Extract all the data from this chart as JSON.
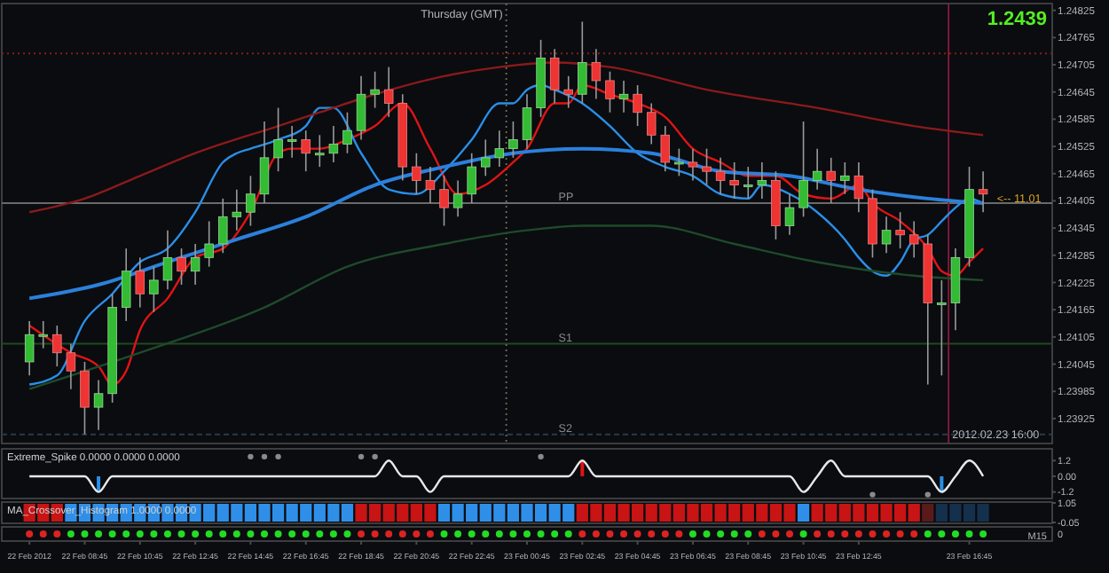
{
  "chart_data": [
    {
      "type": "candlestick",
      "tick_labels": "y",
      "xlim": [
        "2012-02-22T05:45",
        "2012-02-23T19:45"
      ],
      "ylim": [
        1.2387,
        1.2484
      ],
      "yticks": [
        1.24825,
        1.24765,
        1.24705,
        1.24645,
        1.24585,
        1.24525,
        1.24465,
        1.24405,
        1.24345,
        1.24285,
        1.24225,
        1.24165,
        1.24105,
        1.24045,
        1.23985,
        1.23925
      ],
      "x": [
        "2012-02-22T06:45",
        "2012-02-22T07:15",
        "2012-02-22T07:45",
        "2012-02-22T08:15",
        "2012-02-22T08:45",
        "2012-02-22T09:15",
        "2012-02-22T09:45",
        "2012-02-22T10:15",
        "2012-02-22T10:45",
        "2012-02-22T11:15",
        "2012-02-22T11:45",
        "2012-02-22T12:15",
        "2012-02-22T12:45",
        "2012-02-22T13:15",
        "2012-02-22T13:45",
        "2012-02-22T14:15",
        "2012-02-22T14:45",
        "2012-02-22T15:15",
        "2012-02-22T15:45",
        "2012-02-22T16:15",
        "2012-02-22T16:45",
        "2012-02-22T17:15",
        "2012-02-22T17:45",
        "2012-02-22T18:15",
        "2012-02-22T18:45",
        "2012-02-22T19:15",
        "2012-02-22T19:45",
        "2012-02-22T20:15",
        "2012-02-22T20:45",
        "2012-02-22T21:15",
        "2012-02-22T21:45",
        "2012-02-22T22:15",
        "2012-02-22T22:45",
        "2012-02-22T23:15",
        "2012-02-22T23:45",
        "2012-02-23T00:15",
        "2012-02-23T00:45",
        "2012-02-23T01:15",
        "2012-02-23T01:45",
        "2012-02-23T02:15",
        "2012-02-23T02:45",
        "2012-02-23T03:15",
        "2012-02-23T03:45",
        "2012-02-23T04:15",
        "2012-02-23T04:45",
        "2012-02-23T05:15",
        "2012-02-23T05:45",
        "2012-02-23T06:15",
        "2012-02-23T06:45",
        "2012-02-23T07:15",
        "2012-02-23T07:45",
        "2012-02-23T08:15",
        "2012-02-23T08:45",
        "2012-02-23T09:15",
        "2012-02-23T09:45",
        "2012-02-23T10:15",
        "2012-02-23T10:45",
        "2012-02-23T11:15",
        "2012-02-23T11:45",
        "2012-02-23T12:15",
        "2012-02-23T12:45",
        "2012-02-23T13:15",
        "2012-02-23T13:45",
        "2012-02-23T14:15",
        "2012-02-23T14:45",
        "2012-02-23T15:15",
        "2012-02-23T15:45",
        "2012-02-23T16:15",
        "2012-02-23T16:45",
        "2012-02-23T17:15"
      ],
      "ohlc": [
        [
          1.2405,
          1.2414,
          1.2402,
          1.2411
        ],
        [
          1.2411,
          1.2414,
          1.2408,
          1.2411
        ],
        [
          1.2411,
          1.2413,
          1.2404,
          1.2407
        ],
        [
          1.2407,
          1.2409,
          1.2399,
          1.2403
        ],
        [
          1.2403,
          1.2405,
          1.2389,
          1.2395
        ],
        [
          1.2395,
          1.2401,
          1.239,
          1.2398
        ],
        [
          1.2398,
          1.242,
          1.2396,
          1.2417
        ],
        [
          1.2417,
          1.243,
          1.2414,
          1.2425
        ],
        [
          1.2425,
          1.2428,
          1.2417,
          1.242
        ],
        [
          1.242,
          1.2426,
          1.2416,
          1.2423
        ],
        [
          1.2423,
          1.2434,
          1.2421,
          1.2428
        ],
        [
          1.2428,
          1.243,
          1.2422,
          1.2425
        ],
        [
          1.2425,
          1.2431,
          1.2422,
          1.2428
        ],
        [
          1.2428,
          1.2436,
          1.2426,
          1.2431
        ],
        [
          1.2431,
          1.2441,
          1.2429,
          1.2437
        ],
        [
          1.2437,
          1.2443,
          1.2434,
          1.2438
        ],
        [
          1.2438,
          1.2446,
          1.2435,
          1.2442
        ],
        [
          1.2442,
          1.2458,
          1.244,
          1.245
        ],
        [
          1.245,
          1.2461,
          1.2447,
          1.2454
        ],
        [
          1.2454,
          1.2457,
          1.245,
          1.2454
        ],
        [
          1.2454,
          1.2456,
          1.2447,
          1.2451
        ],
        [
          1.2451,
          1.2455,
          1.2448,
          1.2451
        ],
        [
          1.2451,
          1.2457,
          1.2449,
          1.2453
        ],
        [
          1.2453,
          1.246,
          1.2451,
          1.2456
        ],
        [
          1.2456,
          1.2468,
          1.2454,
          1.2464
        ],
        [
          1.2464,
          1.2469,
          1.2461,
          1.2465
        ],
        [
          1.2465,
          1.247,
          1.2459,
          1.2462
        ],
        [
          1.2462,
          1.2464,
          1.2445,
          1.2448
        ],
        [
          1.2448,
          1.2451,
          1.2442,
          1.2445
        ],
        [
          1.2445,
          1.2448,
          1.244,
          1.2443
        ],
        [
          1.2443,
          1.2446,
          1.2435,
          1.2439
        ],
        [
          1.2439,
          1.2445,
          1.2437,
          1.2442
        ],
        [
          1.2442,
          1.2451,
          1.244,
          1.2448
        ],
        [
          1.2448,
          1.2454,
          1.2446,
          1.245
        ],
        [
          1.245,
          1.2456,
          1.2448,
          1.2452
        ],
        [
          1.2452,
          1.2458,
          1.245,
          1.2454
        ],
        [
          1.2454,
          1.2464,
          1.2452,
          1.2461
        ],
        [
          1.2461,
          1.2476,
          1.2459,
          1.2472
        ],
        [
          1.2472,
          1.2474,
          1.2462,
          1.2465
        ],
        [
          1.2465,
          1.2468,
          1.2461,
          1.2464
        ],
        [
          1.2464,
          1.248,
          1.2462,
          1.2471
        ],
        [
          1.2471,
          1.2474,
          1.2463,
          1.2467
        ],
        [
          1.2467,
          1.2469,
          1.246,
          1.2463
        ],
        [
          1.2463,
          1.2467,
          1.246,
          1.2464
        ],
        [
          1.2464,
          1.2466,
          1.2457,
          1.246
        ],
        [
          1.246,
          1.2462,
          1.2453,
          1.2455
        ],
        [
          1.2455,
          1.2457,
          1.2447,
          1.2449
        ],
        [
          1.2449,
          1.2452,
          1.2446,
          1.2449
        ],
        [
          1.2449,
          1.2452,
          1.2445,
          1.2448
        ],
        [
          1.2448,
          1.2452,
          1.2444,
          1.2447
        ],
        [
          1.2447,
          1.245,
          1.2442,
          1.2445
        ],
        [
          1.2445,
          1.2449,
          1.2441,
          1.2444
        ],
        [
          1.2444,
          1.2448,
          1.2441,
          1.2444
        ],
        [
          1.2444,
          1.2449,
          1.2441,
          1.2445
        ],
        [
          1.2445,
          1.2447,
          1.2432,
          1.2435
        ],
        [
          1.2435,
          1.2442,
          1.2433,
          1.2439
        ],
        [
          1.2439,
          1.2458,
          1.2437,
          1.2445
        ],
        [
          1.2445,
          1.2452,
          1.2443,
          1.2447
        ],
        [
          1.2447,
          1.245,
          1.244,
          1.2445
        ],
        [
          1.2445,
          1.2449,
          1.2442,
          1.2446
        ],
        [
          1.2446,
          1.2449,
          1.2438,
          1.2441
        ],
        [
          1.2441,
          1.2443,
          1.2428,
          1.2431
        ],
        [
          1.2431,
          1.2437,
          1.2429,
          1.2434
        ],
        [
          1.2434,
          1.2438,
          1.243,
          1.2433
        ],
        [
          1.2433,
          1.2436,
          1.2428,
          1.2431
        ],
        [
          1.2431,
          1.2433,
          1.24,
          1.2418
        ],
        [
          1.2418,
          1.2423,
          1.2402,
          1.2418
        ],
        [
          1.2418,
          1.243,
          1.2412,
          1.2428
        ],
        [
          1.2428,
          1.2448,
          1.2426,
          1.2443
        ],
        [
          1.2443,
          1.2447,
          1.2438,
          1.2442
        ]
      ],
      "series": [
        {
          "type": "line",
          "color": "#e01414",
          "x": [
            "2012-02-22T06:45",
            "2012-02-22T08:15",
            "2012-02-22T09:15",
            "2012-02-22T09:45",
            "2012-02-22T10:15",
            "2012-02-22T10:45",
            "2012-02-22T11:45",
            "2012-02-22T12:45",
            "2012-02-22T13:45",
            "2012-02-22T14:45",
            "2012-02-22T15:45",
            "2012-02-22T16:15",
            "2012-02-22T17:15",
            "2012-02-22T18:15",
            "2012-02-22T19:15",
            "2012-02-22T20:15",
            "2012-02-22T21:15",
            "2012-02-22T22:15",
            "2012-02-22T23:15",
            "2012-02-23T00:15",
            "2012-02-23T00:45",
            "2012-02-23T01:45",
            "2012-02-23T02:15",
            "2012-02-23T02:45",
            "2012-02-23T03:45",
            "2012-02-23T04:45",
            "2012-02-23T05:45",
            "2012-02-23T06:45",
            "2012-02-23T07:45",
            "2012-02-23T08:45",
            "2012-02-23T09:45",
            "2012-02-23T10:45",
            "2012-02-23T11:45",
            "2012-02-23T12:45",
            "2012-02-23T13:15",
            "2012-02-23T14:15",
            "2012-02-23T15:15",
            "2012-02-23T15:45",
            "2012-02-23T16:15",
            "2012-02-23T16:45",
            "2012-02-23T17:15"
          ],
          "values": [
            1.2413,
            1.2407,
            1.2404,
            1.24,
            1.2403,
            1.2412,
            1.2419,
            1.2428,
            1.243,
            1.2438,
            1.2451,
            1.2452,
            1.2452,
            1.2454,
            1.2457,
            1.2462,
            1.2452,
            1.2442,
            1.2444,
            1.2449,
            1.2452,
            1.2462,
            1.2462,
            1.2466,
            1.2464,
            1.2462,
            1.2459,
            1.2452,
            1.2449,
            1.2446,
            1.2446,
            1.2442,
            1.2441,
            1.2444,
            1.244,
            1.2436,
            1.243,
            1.2425,
            1.2424,
            1.2427,
            1.243
          ]
        },
        {
          "type": "line",
          "color": "#2a8fe8",
          "x": [
            "2012-02-22T06:45",
            "2012-02-22T07:45",
            "2012-02-22T08:45",
            "2012-02-22T09:45",
            "2012-02-22T10:45",
            "2012-02-22T11:45",
            "2012-02-22T12:45",
            "2012-02-22T13:45",
            "2012-02-22T14:15",
            "2012-02-22T14:45",
            "2012-02-22T15:45",
            "2012-02-22T16:45",
            "2012-02-22T17:15",
            "2012-02-22T17:45",
            "2012-02-22T18:45",
            "2012-02-22T19:45",
            "2012-02-22T20:45",
            "2012-02-22T21:45",
            "2012-02-22T22:45",
            "2012-02-22T23:45",
            "2012-02-23T00:15",
            "2012-02-23T00:45",
            "2012-02-23T01:15",
            "2012-02-23T01:45",
            "2012-02-23T02:45",
            "2012-02-23T03:45",
            "2012-02-23T04:45",
            "2012-02-23T05:45",
            "2012-02-23T06:45",
            "2012-02-23T07:45",
            "2012-02-23T08:45",
            "2012-02-23T09:15",
            "2012-02-23T10:15",
            "2012-02-23T11:15",
            "2012-02-23T12:15",
            "2012-02-23T12:45",
            "2012-02-23T13:15",
            "2012-02-23T13:45",
            "2012-02-23T14:15",
            "2012-02-23T14:45",
            "2012-02-23T15:15",
            "2012-02-23T15:45",
            "2012-02-23T16:15",
            "2012-02-23T16:45",
            "2012-02-23T17:15"
          ],
          "values": [
            1.24,
            1.2402,
            1.2414,
            1.242,
            1.2427,
            1.243,
            1.2438,
            1.2449,
            1.2451,
            1.2452,
            1.2454,
            1.2457,
            1.2461,
            1.2461,
            1.2451,
            1.2443,
            1.2442,
            1.2447,
            1.2454,
            1.2462,
            1.2462,
            1.2465,
            1.2466,
            1.2465,
            1.2462,
            1.2457,
            1.2451,
            1.2448,
            1.2446,
            1.2442,
            1.2441,
            1.2444,
            1.2442,
            1.2438,
            1.2432,
            1.2428,
            1.2425,
            1.2424,
            1.2427,
            1.2432,
            1.2433,
            1.2436,
            1.2439,
            1.2441,
            1.244
          ]
        },
        {
          "type": "line",
          "color": "#2b80dc",
          "x": [
            "2012-02-22T06:45",
            "2012-02-22T09:15",
            "2012-02-22T11:45",
            "2012-02-22T14:15",
            "2012-02-22T16:45",
            "2012-02-22T19:15",
            "2012-02-22T21:45",
            "2012-02-23T00:15",
            "2012-02-23T02:45",
            "2012-02-23T05:15",
            "2012-02-23T07:45",
            "2012-02-23T10:15",
            "2012-02-23T12:45",
            "2012-02-23T15:15",
            "2012-02-23T17:15"
          ],
          "values": [
            1.2419,
            1.2422,
            1.2427,
            1.2432,
            1.2437,
            1.2444,
            1.2448,
            1.2451,
            1.2452,
            1.2451,
            1.2447,
            1.2446,
            1.2443,
            1.2441,
            1.244
          ]
        },
        {
          "type": "line",
          "color": "#8b1a1a",
          "x": [
            "2012-02-22T06:45",
            "2012-02-22T08:45",
            "2012-02-22T10:45",
            "2012-02-22T12:45",
            "2012-02-22T15:45",
            "2012-02-22T17:15",
            "2012-02-22T19:15",
            "2012-02-22T21:45",
            "2012-02-22T23:45",
            "2012-02-23T01:45",
            "2012-02-23T03:45",
            "2012-02-23T07:15",
            "2012-02-23T11:15",
            "2012-02-23T14:45",
            "2012-02-23T17:15"
          ],
          "values": [
            1.2438,
            1.2441,
            1.2446,
            1.2451,
            1.2457,
            1.246,
            1.2464,
            1.2468,
            1.247,
            1.2471,
            1.247,
            1.2465,
            1.2461,
            1.2457,
            1.2455
          ]
        },
        {
          "type": "line",
          "color": "#1f4a2a",
          "x": [
            "2012-02-22T06:45",
            "2012-02-22T10:45",
            "2012-02-22T15:15",
            "2012-02-22T18:15",
            "2012-02-22T21:45",
            "2012-02-23T00:45",
            "2012-02-23T02:45",
            "2012-02-23T05:15",
            "2012-02-23T08:15",
            "2012-02-23T11:15",
            "2012-02-23T14:45",
            "2012-02-23T17:15"
          ],
          "values": [
            1.2399,
            1.2407,
            1.2417,
            1.2426,
            1.2431,
            1.2434,
            1.2435,
            1.2435,
            1.2431,
            1.2427,
            1.2424,
            1.2423
          ]
        }
      ],
      "ref_lines": [
        {
          "axis": "y",
          "value": 1.2473,
          "color": "#8b1a1a",
          "line_style": "dotted"
        },
        {
          "axis": "y",
          "value": 1.244,
          "label": "PP",
          "color": "#6a6a6a",
          "line_style": "solid"
        },
        {
          "axis": "y",
          "value": 1.2409,
          "label": "S1",
          "color": "#1f4a1f",
          "line_style": "solid"
        },
        {
          "axis": "y",
          "value": 1.2389,
          "label": "S2",
          "color": "#2a3a4a",
          "line_style": "dashed"
        },
        {
          "axis": "x",
          "value": "2012-02-23T00:00",
          "label": "Thursday (GMT)",
          "color": "#7a6a50",
          "line_style": "dotted"
        },
        {
          "axis": "x",
          "value": "2012-02-23T16:00",
          "label": "2012.02.23 16:00",
          "color": "#8b1a3a",
          "line_style": "solid"
        }
      ],
      "annotations": [
        "1.2439",
        {
          "text": "<-- 11.01",
          "x": "2012-02-23T17:45",
          "y": 1.2441
        }
      ]
    },
    {
      "type": "line",
      "title": "Extreme_Spike 0.0000 0.0000 0.0000",
      "tick_labels": "y",
      "xlim": [
        "2012-02-22T05:45",
        "2012-02-23T19:45"
      ],
      "ylim": [
        -1.7,
        2.1
      ],
      "yticks": [
        1.2,
        {
          "value": 0,
          "label": "0.00"
        },
        -1.2
      ],
      "series": [
        {
          "type": "bar",
          "x": [
            "2012-02-22T09:15",
            "2012-02-23T02:45",
            "2012-02-23T15:45"
          ],
          "values": [
            -1.2,
            1.2,
            -1.2
          ],
          "colors": [
            "#2a8fe8",
            "#e01414",
            "#2a8fe8"
          ]
        },
        {
          "type": "line",
          "color": "#e8e8e8",
          "x": [
            "2012-02-22T06:45",
            "2012-02-22T08:45",
            "2012-02-22T09:15",
            "2012-02-22T09:45",
            "2012-02-22T19:15",
            "2012-02-22T19:45",
            "2012-02-22T20:15",
            "2012-02-22T20:45",
            "2012-02-22T21:15",
            "2012-02-22T21:45",
            "2012-02-23T02:15",
            "2012-02-23T02:45",
            "2012-02-23T03:15",
            "2012-02-23T10:15",
            "2012-02-23T10:45",
            "2012-02-23T11:15",
            "2012-02-23T11:45",
            "2012-02-23T12:15",
            "2012-02-23T15:15",
            "2012-02-23T15:45",
            "2012-02-23T16:15",
            "2012-02-23T16:45",
            "2012-02-23T17:15"
          ],
          "values": [
            0,
            0,
            -1.2,
            0,
            0,
            1.2,
            0,
            0,
            -1.2,
            0,
            0,
            1.2,
            0,
            0,
            -1.2,
            0,
            1.2,
            0,
            0,
            -1.2,
            0,
            1.2,
            0
          ]
        },
        {
          "type": "scatter",
          "color": "#8a8a8a",
          "x": [
            "2012-02-22T14:45",
            "2012-02-22T15:15",
            "2012-02-22T15:45",
            "2012-02-22T18:45",
            "2012-02-22T19:15",
            "2012-02-23T01:15",
            "2012-02-23T13:15",
            "2012-02-23T15:15"
          ],
          "values": [
            1.5,
            1.5,
            1.5,
            1.5,
            1.5,
            1.5,
            -1.4,
            -1.4
          ]
        }
      ]
    },
    {
      "type": "bar",
      "title": "MA_Crossover_Histogram 1.0000 0.0000",
      "xlim": [
        "2012-02-22T05:45",
        "2012-02-23T19:45"
      ],
      "ylim": [
        -0.1,
        1.1
      ],
      "yticks": [
        1.05,
        -0.05
      ],
      "xticks": [
        {
          "value": "2012-02-22T06:45",
          "label": "22 Feb 2012"
        },
        {
          "value": "2012-02-22T08:45",
          "label": "22 Feb 08:45"
        },
        {
          "value": "2012-02-22T10:45",
          "label": "22 Feb 10:45"
        },
        {
          "value": "2012-02-22T12:45",
          "label": "22 Feb 12:45"
        },
        {
          "value": "2012-02-22T14:45",
          "label": "22 Feb 14:45"
        },
        {
          "value": "2012-02-22T16:45",
          "label": "22 Feb 16:45"
        },
        {
          "value": "2012-02-22T18:45",
          "label": "22 Feb 18:45"
        },
        {
          "value": "2012-02-22T20:45",
          "label": "22 Feb 20:45"
        },
        {
          "value": "2012-02-22T22:45",
          "label": "22 Feb 22:45"
        },
        {
          "value": "2012-02-23T00:45",
          "label": "23 Feb 00:45"
        },
        {
          "value": "2012-02-23T02:45",
          "label": "23 Feb 02:45"
        },
        {
          "value": "2012-02-23T04:45",
          "label": "23 Feb 04:45"
        },
        {
          "value": "2012-02-23T06:45",
          "label": "23 Feb 06:45"
        },
        {
          "value": "2012-02-23T08:45",
          "label": "23 Feb 08:45"
        },
        {
          "value": "2012-02-23T10:45",
          "label": "23 Feb 10:45"
        },
        {
          "value": "2012-02-23T12:45",
          "label": "23 Feb 12:45"
        },
        {
          "value": "2012-02-23T16:45",
          "label": "23 Feb 16:45"
        }
      ],
      "x": [
        "2012-02-22T06:45",
        "2012-02-22T07:15",
        "2012-02-22T07:45",
        "2012-02-22T08:15",
        "2012-02-22T08:45",
        "2012-02-22T09:15",
        "2012-02-22T09:45",
        "2012-02-22T10:15",
        "2012-02-22T10:45",
        "2012-02-22T11:15",
        "2012-02-22T11:45",
        "2012-02-22T12:15",
        "2012-02-22T12:45",
        "2012-02-22T13:15",
        "2012-02-22T13:45",
        "2012-02-22T14:15",
        "2012-02-22T14:45",
        "2012-02-22T15:15",
        "2012-02-22T15:45",
        "2012-02-22T16:15",
        "2012-02-22T16:45",
        "2012-02-22T17:15",
        "2012-02-22T17:45",
        "2012-02-22T18:15",
        "2012-02-22T18:45",
        "2012-02-22T19:15",
        "2012-02-22T19:45",
        "2012-02-22T20:15",
        "2012-02-22T20:45",
        "2012-02-22T21:15",
        "2012-02-22T21:45",
        "2012-02-22T22:15",
        "2012-02-22T22:45",
        "2012-02-22T23:15",
        "2012-02-22T23:45",
        "2012-02-23T00:15",
        "2012-02-23T00:45",
        "2012-02-23T01:15",
        "2012-02-23T01:45",
        "2012-02-23T02:15",
        "2012-02-23T02:45",
        "2012-02-23T03:15",
        "2012-02-23T03:45",
        "2012-02-23T04:15",
        "2012-02-23T04:45",
        "2012-02-23T05:15",
        "2012-02-23T05:45",
        "2012-02-23T06:15",
        "2012-02-23T06:45",
        "2012-02-23T07:15",
        "2012-02-23T07:45",
        "2012-02-23T08:15",
        "2012-02-23T08:45",
        "2012-02-23T09:15",
        "2012-02-23T09:45",
        "2012-02-23T10:15",
        "2012-02-23T10:45",
        "2012-02-23T11:15",
        "2012-02-23T11:45",
        "2012-02-23T12:15",
        "2012-02-23T12:45",
        "2012-02-23T13:15",
        "2012-02-23T13:45",
        "2012-02-23T14:15",
        "2012-02-23T14:45",
        "2012-02-23T15:15",
        "2012-02-23T15:45",
        "2012-02-23T16:15",
        "2012-02-23T16:45",
        "2012-02-23T17:15"
      ],
      "values": [
        1,
        1,
        1,
        1,
        1,
        1,
        1,
        1,
        1,
        1,
        1,
        1,
        1,
        1,
        1,
        1,
        1,
        1,
        1,
        1,
        1,
        1,
        1,
        1,
        1,
        1,
        1,
        1,
        1,
        1,
        1,
        1,
        1,
        1,
        1,
        1,
        1,
        1,
        1,
        1,
        1,
        1,
        1,
        1,
        1,
        1,
        1,
        1,
        1,
        1,
        1,
        1,
        1,
        1,
        1,
        1,
        1,
        1,
        1,
        1,
        1,
        1,
        1,
        1,
        1,
        1,
        1,
        1,
        1,
        1
      ],
      "colors": [
        "#c81414",
        "#c81414",
        "#c81414",
        "#2f8fe8",
        "#2f8fe8",
        "#2f8fe8",
        "#2f8fe8",
        "#2f8fe8",
        "#2f8fe8",
        "#2f8fe8",
        "#2f8fe8",
        "#2f8fe8",
        "#2f8fe8",
        "#2f8fe8",
        "#2f8fe8",
        "#2f8fe8",
        "#2f8fe8",
        "#2f8fe8",
        "#2f8fe8",
        "#2f8fe8",
        "#2f8fe8",
        "#2f8fe8",
        "#2f8fe8",
        "#2f8fe8",
        "#c81414",
        "#c81414",
        "#c81414",
        "#c81414",
        "#c81414",
        "#c81414",
        "#2f8fe8",
        "#2f8fe8",
        "#2f8fe8",
        "#2f8fe8",
        "#2f8fe8",
        "#2f8fe8",
        "#2f8fe8",
        "#2f8fe8",
        "#2f8fe8",
        "#2f8fe8",
        "#c81414",
        "#c81414",
        "#c81414",
        "#c81414",
        "#c81414",
        "#c81414",
        "#c81414",
        "#c81414",
        "#c81414",
        "#c81414",
        "#c81414",
        "#c81414",
        "#c81414",
        "#c81414",
        "#c81414",
        "#c81414",
        "#2f8fe8",
        "#c81414",
        "#c81414",
        "#c81414",
        "#c81414",
        "#c81414",
        "#c81414",
        "#c81414",
        "#c81414",
        "#5a1a1a",
        "#14304d",
        "#14304d",
        "#14304d",
        "#14304d"
      ]
    },
    {
      "type": "other",
      "colors": [
        "#dd2222",
        "#dd2222",
        "#dd2222",
        "#22dd22",
        "#22dd22",
        "#22dd22",
        "#22dd22",
        "#22dd22",
        "#22dd22",
        "#22dd22",
        "#22dd22",
        "#22dd22",
        "#22dd22",
        "#22dd22",
        "#22dd22",
        "#22dd22",
        "#22dd22",
        "#22dd22",
        "#22dd22",
        "#22dd22",
        "#22dd22",
        "#22dd22",
        "#22dd22",
        "#22dd22",
        "#dd2222",
        "#dd2222",
        "#dd2222",
        "#dd2222",
        "#dd2222",
        "#dd2222",
        "#22dd22",
        "#22dd22",
        "#22dd22",
        "#22dd22",
        "#22dd22",
        "#22dd22",
        "#22dd22",
        "#22dd22",
        "#22dd22",
        "#22dd22",
        "#dd2222",
        "#dd2222",
        "#dd2222",
        "#dd2222",
        "#dd2222",
        "#dd2222",
        "#dd2222",
        "#dd2222",
        "#22dd22",
        "#22dd22",
        "#22dd22",
        "#22dd22",
        "#22dd22",
        "#dd2222",
        "#dd2222",
        "#dd2222",
        "#22dd22",
        "#dd2222",
        "#dd2222",
        "#dd2222",
        "#dd2222",
        "#dd2222",
        "#dd2222",
        "#dd2222",
        "#dd2222",
        "#22dd22",
        "#22dd22",
        "#22dd22",
        "#22dd22",
        "#22dd22"
      ],
      "annotations": [
        "M15",
        "0"
      ]
    }
  ]
}
